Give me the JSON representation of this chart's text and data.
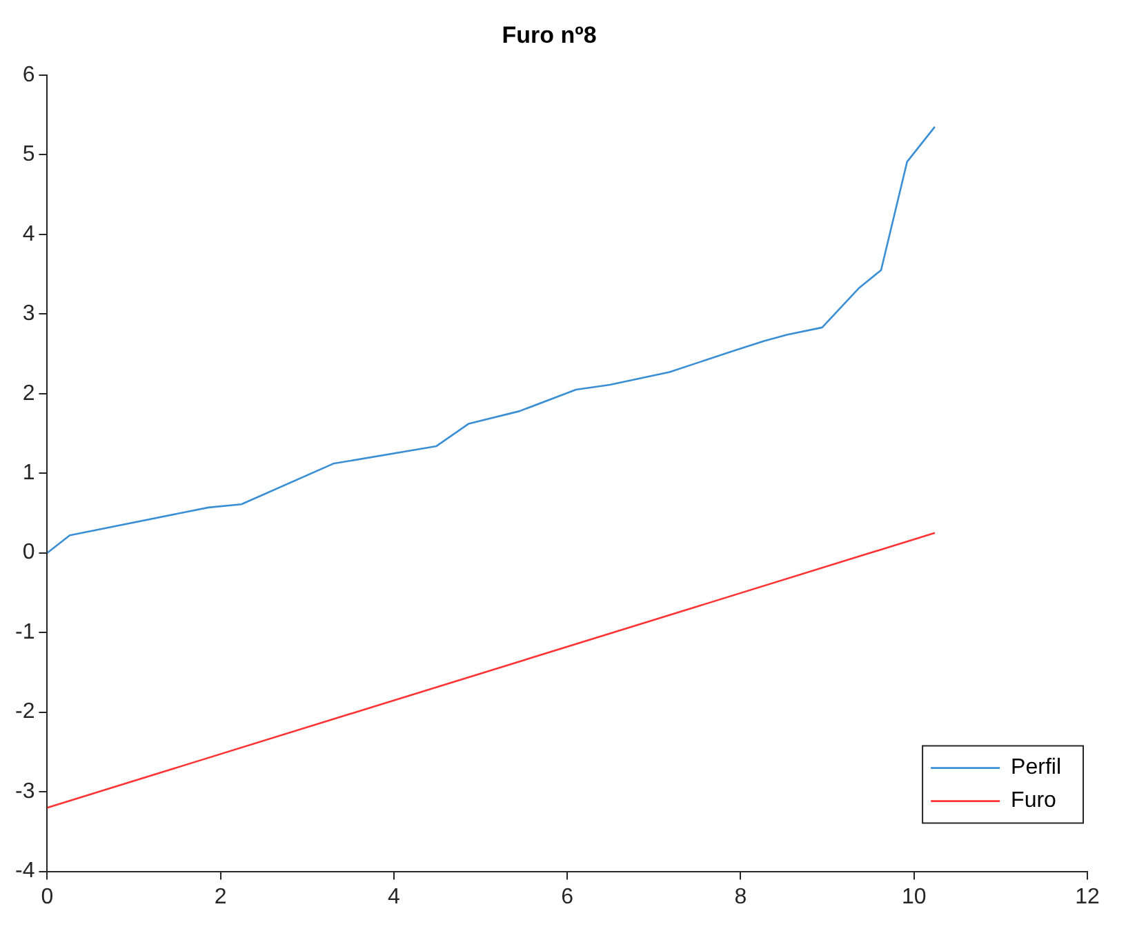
{
  "chart_data": {
    "type": "line",
    "title": "Furo nº8",
    "xlim": [
      0,
      12
    ],
    "xticks": [
      0,
      2,
      4,
      6,
      8,
      10,
      12
    ],
    "ylim": [
      -4,
      6
    ],
    "yticks": [
      -4,
      -3,
      -2,
      -1,
      0,
      1,
      2,
      3,
      4,
      5,
      6
    ],
    "grid": false,
    "legend": "bottom right",
    "marker": "none",
    "line_style": "solid",
    "series": [
      {
        "name": "Perfil",
        "color": "#3a8fd4",
        "x": [
          0,
          0.26,
          1.86,
          2.24,
          3.3,
          4.49,
          4.86,
          5.45,
          6.1,
          6.49,
          7.18,
          8.01,
          8.27,
          8.54,
          8.94,
          9.36,
          9.62,
          9.92,
          10.24
        ],
        "values": [
          0,
          0.22,
          0.57,
          0.61,
          1.12,
          1.34,
          1.62,
          1.78,
          2.05,
          2.11,
          2.27,
          2.57,
          2.66,
          2.74,
          2.83,
          3.32,
          3.55,
          4.91,
          5.35
        ]
      },
      {
        "name": "Furo",
        "color": "#ff3333",
        "x": [
          0,
          10.24
        ],
        "values": [
          -3.2,
          0.25
        ]
      }
    ]
  }
}
